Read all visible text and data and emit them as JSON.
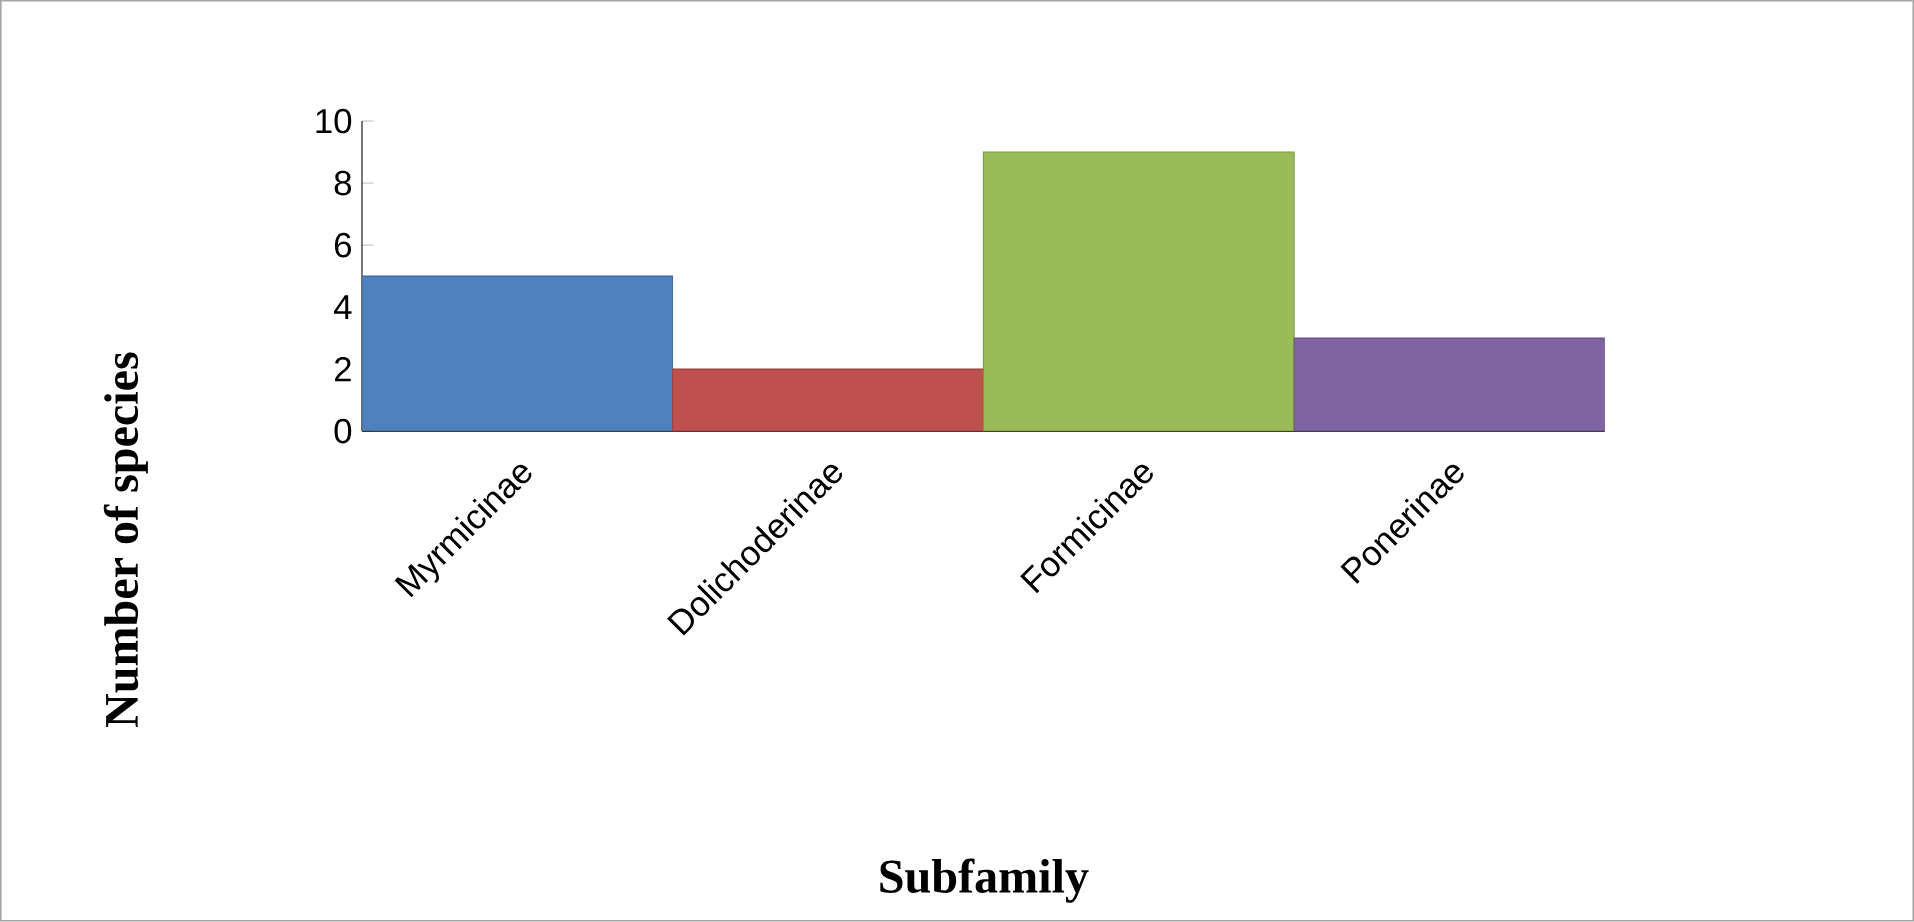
{
  "chart_data": {
    "type": "bar",
    "xlabel": "Subfamily",
    "ylabel": "Number of species",
    "categories": [
      "Myrmicinae",
      "Dolichoderinae",
      "Formicinae",
      "Ponerinae"
    ],
    "values": [
      5,
      2,
      9,
      3
    ],
    "colors": [
      "#4f81bd",
      "#c0504d",
      "#9bbb59",
      "#8064a2"
    ],
    "ylim": [
      0,
      10
    ],
    "yticks": [
      0,
      2,
      4,
      6,
      8,
      10
    ],
    "grid": false
  }
}
